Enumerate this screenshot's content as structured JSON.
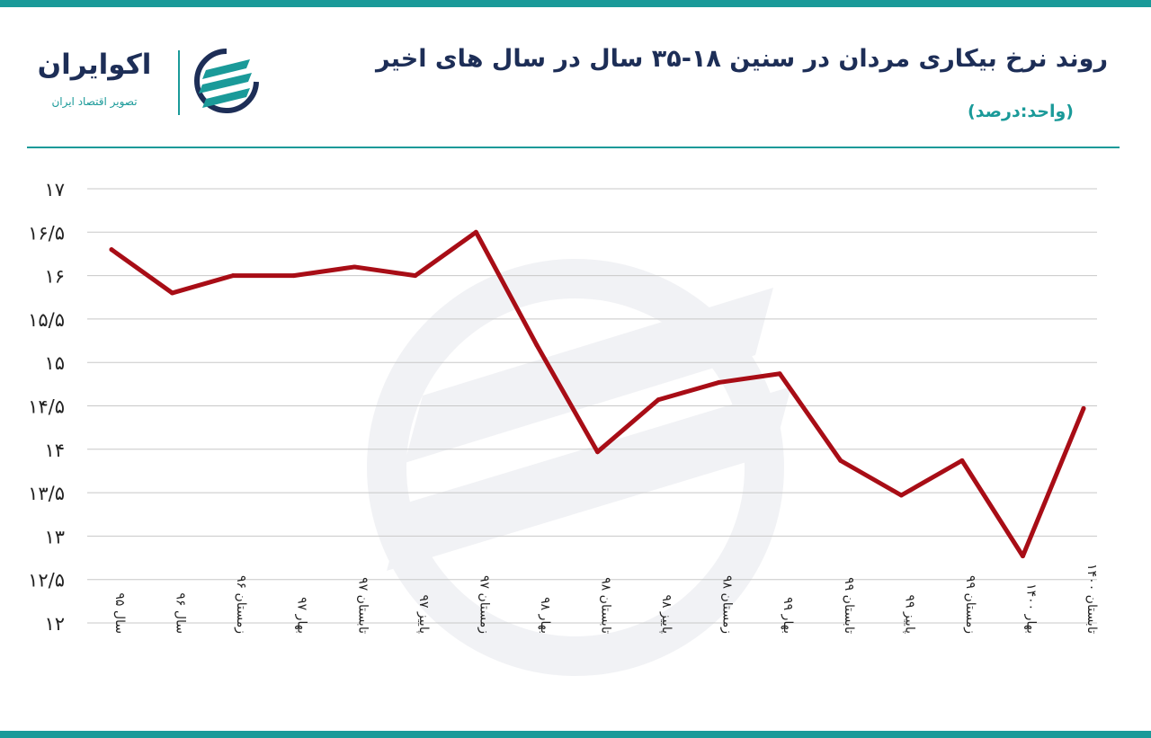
{
  "header": {
    "title": "روند نرخ بیکاری مردان در سنین ۱۸-۳۵ سال در سال های اخیر",
    "subtitle": "(واحد:درصد)"
  },
  "logo": {
    "name": "اکوایران",
    "tagline": "تصویر اقتصاد ایران",
    "icon": "ecoiran-logo-icon"
  },
  "colors": {
    "accent": "#1a9a99",
    "title": "#1d2e57",
    "line": "#a80d16",
    "grid": "#c8c8c8"
  },
  "chart_data": {
    "type": "line",
    "title": "روند نرخ بیکاری مردان در سنین ۱۸-۳۵ سال در سال های اخیر",
    "unit": "(واحد:درصد)",
    "categories": [
      "سال ۹۵",
      "سال ۹۶",
      "زمستان ۹۶",
      "بهار ۹۷",
      "تابستان ۹۷",
      "پاییز ۹۷",
      "زمستان ۹۷",
      "بهار ۹۸",
      "تابستان ۹۸",
      "پاییز ۹۸",
      "زمستان ۹۸",
      "بهار ۹۹",
      "تابستان ۹۹",
      "پاییز ۹۹",
      "زمستان ۹۹",
      "بهار ۱۴۰۰",
      "تابستان ۱۴۰۰"
    ],
    "series": [
      {
        "values": [
          16.3,
          15.8,
          16.0,
          16.0,
          16.1,
          16.0,
          16.5,
          15.2,
          13.97,
          14.57,
          14.77,
          14.87,
          13.87,
          13.47,
          13.87,
          12.77,
          14.47
        ]
      }
    ],
    "ylim": [
      12,
      17
    ],
    "y_ticks": [
      12,
      12.5,
      13,
      13.5,
      14,
      14.5,
      15,
      15.5,
      16,
      16.5,
      17
    ],
    "y_tick_labels": [
      "۱۲",
      "۱۲/۵",
      "۱۳",
      "۱۳/۵",
      "۱۴",
      "۱۴/۵",
      "۱۵",
      "۱۵/۵",
      "۱۶",
      "۱۶/۵",
      "۱۷"
    ],
    "grid": true,
    "legend": "none"
  }
}
